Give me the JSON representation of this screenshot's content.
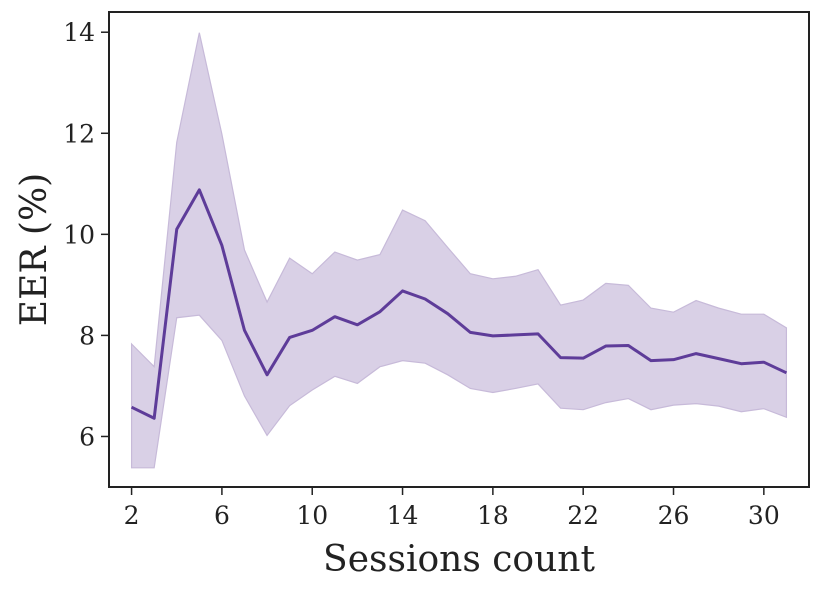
{
  "chart_data": {
    "type": "line",
    "title": "",
    "xlabel": "Sessions count",
    "ylabel": "EER (%)",
    "xlim": [
      1,
      32
    ],
    "ylim": [
      5,
      14.4
    ],
    "xticks": [
      2,
      6,
      10,
      14,
      18,
      22,
      26,
      30
    ],
    "yticks": [
      6,
      8,
      10,
      12,
      14
    ],
    "grid": false,
    "legend": "none",
    "colors": {
      "line": "#5e3c99",
      "band": "#d9d0e6",
      "band_edge": "#c7bad9",
      "axis": "#222222"
    },
    "x": [
      2,
      3,
      4,
      5,
      6,
      7,
      8,
      9,
      10,
      11,
      12,
      13,
      14,
      15,
      16,
      17,
      18,
      19,
      20,
      21,
      22,
      23,
      24,
      25,
      26,
      27,
      28,
      29,
      30,
      31
    ],
    "mean": [
      6.58,
      6.36,
      10.1,
      10.88,
      9.78,
      8.1,
      7.22,
      7.96,
      8.1,
      8.37,
      8.21,
      8.47,
      8.88,
      8.72,
      8.43,
      8.06,
      7.99,
      8.01,
      8.03,
      7.56,
      7.55,
      7.79,
      7.8,
      7.5,
      7.52,
      7.64,
      7.54,
      7.44,
      7.47,
      7.26
    ],
    "lower": [
      5.38,
      5.38,
      8.35,
      8.4,
      7.9,
      6.8,
      6.02,
      6.61,
      6.92,
      7.19,
      7.05,
      7.38,
      7.5,
      7.45,
      7.22,
      6.95,
      6.87,
      6.95,
      7.04,
      6.56,
      6.53,
      6.67,
      6.75,
      6.53,
      6.62,
      6.65,
      6.6,
      6.49,
      6.55,
      6.38
    ],
    "upper": [
      7.83,
      7.38,
      11.82,
      13.99,
      11.98,
      9.69,
      8.66,
      9.53,
      9.22,
      9.65,
      9.49,
      9.6,
      10.48,
      10.27,
      9.74,
      9.22,
      9.12,
      9.17,
      9.3,
      8.6,
      8.7,
      9.03,
      8.99,
      8.54,
      8.46,
      8.69,
      8.54,
      8.42,
      8.42,
      8.15
    ]
  }
}
